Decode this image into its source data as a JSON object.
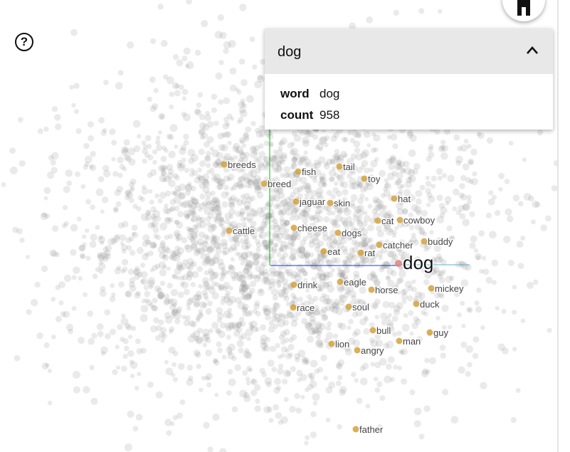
{
  "help": {
    "icon": "question-circle-icon",
    "glyph": "?"
  },
  "home": {
    "icon": "home-icon"
  },
  "selected": {
    "title": "dog",
    "fields": [
      {
        "key": "word",
        "value": "dog"
      },
      {
        "key": "count",
        "value": "958"
      }
    ]
  },
  "colors": {
    "point": "#8c8c8c",
    "neighbor": "#d4a23c",
    "selected": "#e08080",
    "x_axis": "#1a3fb0",
    "y_axis": "#1faa1f",
    "ray": "#4fb3d9"
  },
  "labels": [
    "breeds",
    "fish",
    "tail",
    "toy",
    "breed",
    "jaguar",
    "skin",
    "hat",
    "cat",
    "cowboy",
    "cheese",
    "dogs",
    "cattle",
    "buddy",
    "catcher",
    "eat",
    "rat",
    "dog",
    "drink",
    "eagle",
    "horse",
    "mickey",
    "race",
    "soul",
    "duck",
    "bull",
    "guy",
    "man",
    "lion",
    "angry",
    "father"
  ]
}
